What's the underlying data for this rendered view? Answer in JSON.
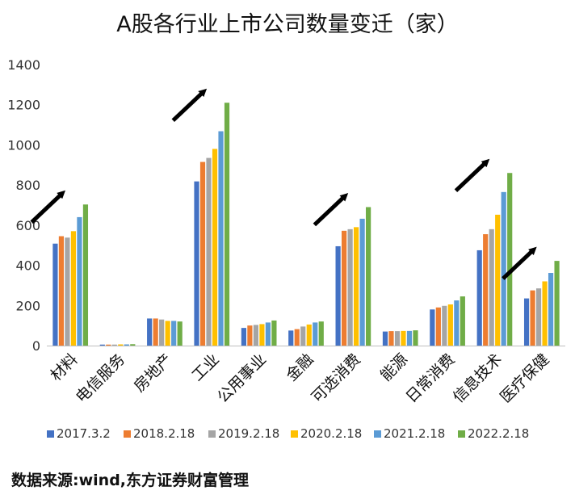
{
  "chart_data": {
    "type": "bar",
    "title": "A股各行业上市公司数量变迁（家）",
    "xlabel": "",
    "ylabel": "",
    "ylim": [
      0,
      1400
    ],
    "yticks": [
      0,
      200,
      400,
      600,
      800,
      1000,
      1200,
      1400
    ],
    "grid": false,
    "legend_position": "bottom",
    "categories": [
      "材料",
      "电信服务",
      "房地产",
      "工业",
      "公用事业",
      "金融",
      "可选消费",
      "能源",
      "日常消费",
      "信息技术",
      "医疗保健"
    ],
    "series": [
      {
        "name": "2017.3.2",
        "color": "#4472C4",
        "values": [
          508,
          5,
          135,
          818,
          88,
          75,
          495,
          70,
          180,
          475,
          235
        ]
      },
      {
        "name": "2018.2.18",
        "color": "#ED7D31",
        "values": [
          545,
          5,
          135,
          915,
          100,
          82,
          572,
          72,
          190,
          555,
          275
        ]
      },
      {
        "name": "2019.2.18",
        "color": "#A5A5A5",
        "values": [
          538,
          5,
          130,
          935,
          103,
          95,
          580,
          72,
          198,
          580,
          285
        ]
      },
      {
        "name": "2020.2.18",
        "color": "#FFC000",
        "values": [
          570,
          6,
          123,
          980,
          107,
          105,
          590,
          73,
          205,
          652,
          320
        ]
      },
      {
        "name": "2021.2.18",
        "color": "#5B9BD5",
        "values": [
          640,
          6,
          123,
          1068,
          115,
          115,
          632,
          73,
          225,
          765,
          362
        ]
      },
      {
        "name": "2022.2.18",
        "color": "#70AD47",
        "values": [
          703,
          7,
          120,
          1210,
          125,
          120,
          690,
          76,
          245,
          860,
          422
        ]
      }
    ],
    "annotations": [
      {
        "type": "arrow",
        "category": "材料"
      },
      {
        "type": "arrow",
        "category": "工业"
      },
      {
        "type": "arrow",
        "category": "可选消费"
      },
      {
        "type": "arrow",
        "category": "信息技术"
      },
      {
        "type": "arrow",
        "category": "医疗保健"
      }
    ]
  },
  "source_note": "数据来源:wind,东方证券财富管理"
}
